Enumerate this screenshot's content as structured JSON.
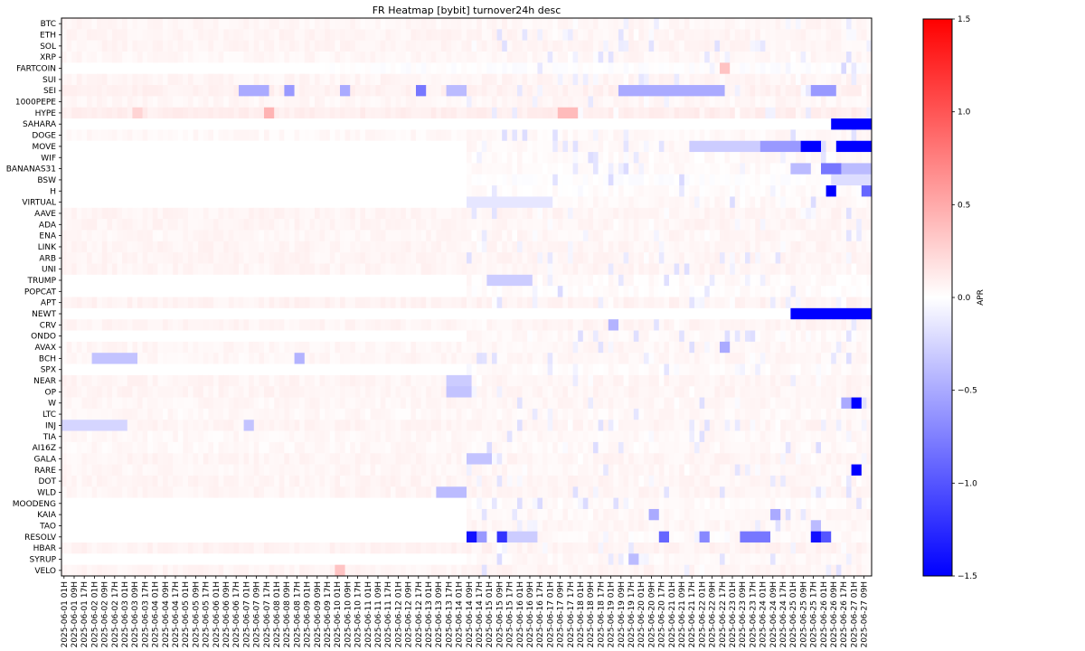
{
  "chart_data": {
    "type": "heatmap",
    "title": "FR Heatmap [bybit] turnover24h desc",
    "colorbar": {
      "label": "APR",
      "vmin": -1.5,
      "vmax": 1.5,
      "ticks": [
        1.5,
        1.0,
        0.5,
        0.0,
        -0.5,
        -1.0,
        -1.5
      ],
      "tick_labels": [
        "1.5",
        "1.0",
        "0.5",
        "0.0",
        "−0.5",
        "−1.0",
        "−1.5"
      ],
      "colormap": "bwr"
    },
    "y_labels": [
      "BTC",
      "ETH",
      "SOL",
      "XRP",
      "FARTCOIN",
      "SUI",
      "SEI",
      "1000PEPE",
      "HYPE",
      "SAHARA",
      "DOGE",
      "MOVE",
      "WIF",
      "BANANAS31",
      "BSW",
      "H",
      "VIRTUAL",
      "AAVE",
      "ADA",
      "ENA",
      "LINK",
      "ARB",
      "UNI",
      "TRUMP",
      "POPCAT",
      "APT",
      "NEWT",
      "CRV",
      "ONDO",
      "AVAX",
      "BCH",
      "SPX",
      "NEAR",
      "OP",
      "W",
      "LTC",
      "INJ",
      "TIA",
      "AI16Z",
      "GALA",
      "RARE",
      "DOT",
      "WLD",
      "MOODENG",
      "KAIA",
      "TAO",
      "RESOLV",
      "HBAR",
      "SYRUP",
      "VELO"
    ],
    "x_labels": [
      "2025-06-01 01H",
      "2025-06-01 09H",
      "2025-06-01 17H",
      "2025-06-02 01H",
      "2025-06-02 09H",
      "2025-06-02 17H",
      "2025-06-03 01H",
      "2025-06-03 09H",
      "2025-06-03 17H",
      "2025-06-04 01H",
      "2025-06-04 09H",
      "2025-06-04 17H",
      "2025-06-05 01H",
      "2025-06-05 09H",
      "2025-06-05 17H",
      "2025-06-06 01H",
      "2025-06-06 09H",
      "2025-06-06 17H",
      "2025-06-07 01H",
      "2025-06-07 09H",
      "2025-06-07 17H",
      "2025-06-08 01H",
      "2025-06-08 09H",
      "2025-06-08 17H",
      "2025-06-09 01H",
      "2025-06-09 09H",
      "2025-06-09 17H",
      "2025-06-10 01H",
      "2025-06-10 09H",
      "2025-06-10 17H",
      "2025-06-11 01H",
      "2025-06-11 09H",
      "2025-06-11 17H",
      "2025-06-12 01H",
      "2025-06-12 09H",
      "2025-06-12 17H",
      "2025-06-13 01H",
      "2025-06-13 09H",
      "2025-06-13 17H",
      "2025-06-14 01H",
      "2025-06-14 09H",
      "2025-06-14 17H",
      "2025-06-15 01H",
      "2025-06-15 09H",
      "2025-06-15 17H",
      "2025-06-16 01H",
      "2025-06-16 09H",
      "2025-06-16 17H",
      "2025-06-17 01H",
      "2025-06-17 09H",
      "2025-06-17 17H",
      "2025-06-18 01H",
      "2025-06-18 09H",
      "2025-06-18 17H",
      "2025-06-19 01H",
      "2025-06-19 09H",
      "2025-06-19 17H",
      "2025-06-20 01H",
      "2025-06-20 09H",
      "2025-06-20 17H",
      "2025-06-21 01H",
      "2025-06-21 09H",
      "2025-06-21 17H",
      "2025-06-22 01H",
      "2025-06-22 09H",
      "2025-06-22 17H",
      "2025-06-23 01H",
      "2025-06-23 09H",
      "2025-06-23 17H",
      "2025-06-24 01H",
      "2025-06-24 09H",
      "2025-06-24 17H",
      "2025-06-25 01H",
      "2025-06-25 09H",
      "2025-06-25 17H",
      "2025-06-26 01H",
      "2025-06-26 09H",
      "2025-06-26 17H",
      "2025-06-27 01H",
      "2025-06-27 09H"
    ],
    "n_columns": 160,
    "baseline_by_row": [
      0.05,
      0.06,
      0.06,
      0.05,
      0.0,
      0.06,
      0.08,
      0.05,
      0.1,
      0.0,
      0.04,
      0.04,
      0.03,
      0.03,
      0.0,
      0.02,
      0.04,
      0.06,
      0.06,
      0.05,
      0.06,
      0.06,
      0.06,
      0.03,
      0.02,
      0.07,
      0.04,
      0.06,
      0.04,
      0.05,
      0.05,
      0.03,
      0.06,
      0.06,
      0.05,
      0.04,
      0.06,
      0.04,
      0.04,
      0.06,
      0.05,
      0.06,
      0.06,
      0.03,
      0.05,
      0.05,
      0.04,
      0.07,
      0.04,
      0.06
    ],
    "listing_start_column": {
      "SAHARA": 152,
      "FARTCOIN": 52,
      "MOVE": 80,
      "WIF": 80,
      "BANANAS31": 80,
      "BSW": 80,
      "H": 80,
      "VIRTUAL": 80,
      "TRUMP": 80,
      "POPCAT": 80,
      "ONDO": 80,
      "SPX": 80,
      "MOODENG": 80,
      "KAIA": 80,
      "TAO": 80,
      "RESOLV": 80,
      "SYRUP": 80,
      "NEWT": 144
    },
    "highlight_cells": [
      {
        "row": "SAHARA",
        "from": 152,
        "to": 159,
        "value": -1.5
      },
      {
        "row": "MOVE",
        "from": 146,
        "to": 149,
        "value": -1.5
      },
      {
        "row": "MOVE",
        "from": 153,
        "to": 154,
        "value": -1.5
      },
      {
        "row": "MOVE",
        "from": 155,
        "to": 159,
        "value": -1.5
      },
      {
        "row": "MOVE",
        "from": 138,
        "to": 145,
        "value": -0.6
      },
      {
        "row": "MOVE",
        "from": 124,
        "to": 137,
        "value": -0.3
      },
      {
        "row": "NEWT",
        "from": 144,
        "to": 159,
        "value": -1.5
      },
      {
        "row": "H",
        "from": 151,
        "to": 152,
        "value": -1.5
      },
      {
        "row": "H",
        "from": 158,
        "to": 159,
        "value": -0.9
      },
      {
        "row": "W",
        "from": 156,
        "to": 157,
        "value": -1.5
      },
      {
        "row": "W",
        "from": 154,
        "to": 155,
        "value": -0.5
      },
      {
        "row": "RARE",
        "from": 156,
        "to": 157,
        "value": -1.5
      },
      {
        "row": "RESOLV",
        "from": 80,
        "to": 81,
        "value": -1.4
      },
      {
        "row": "RESOLV",
        "from": 82,
        "to": 83,
        "value": -0.6
      },
      {
        "row": "RESOLV",
        "from": 86,
        "to": 87,
        "value": -1.2
      },
      {
        "row": "RESOLV",
        "from": 88,
        "to": 93,
        "value": -0.3
      },
      {
        "row": "RESOLV",
        "from": 118,
        "to": 119,
        "value": -0.9
      },
      {
        "row": "RESOLV",
        "from": 126,
        "to": 127,
        "value": -0.7
      },
      {
        "row": "RESOLV",
        "from": 134,
        "to": 139,
        "value": -0.8
      },
      {
        "row": "RESOLV",
        "from": 148,
        "to": 149,
        "value": -1.4
      },
      {
        "row": "RESOLV",
        "from": 150,
        "to": 151,
        "value": -1.0
      },
      {
        "row": "SEI",
        "from": 35,
        "to": 40,
        "value": -0.5
      },
      {
        "row": "SEI",
        "from": 44,
        "to": 45,
        "value": -0.6
      },
      {
        "row": "SEI",
        "from": 55,
        "to": 56,
        "value": -0.5
      },
      {
        "row": "SEI",
        "from": 70,
        "to": 71,
        "value": -0.8
      },
      {
        "row": "SEI",
        "from": 76,
        "to": 79,
        "value": -0.4
      },
      {
        "row": "SEI",
        "from": 110,
        "to": 130,
        "value": -0.5
      },
      {
        "row": "SEI",
        "from": 148,
        "to": 152,
        "value": -0.6
      },
      {
        "row": "BANANAS31",
        "from": 144,
        "to": 147,
        "value": -0.4
      },
      {
        "row": "BANANAS31",
        "from": 150,
        "to": 153,
        "value": -0.8
      },
      {
        "row": "BANANAS31",
        "from": 154,
        "to": 159,
        "value": -0.4
      },
      {
        "row": "BSW",
        "from": 152,
        "to": 159,
        "value": -0.2
      },
      {
        "row": "HYPE",
        "from": 40,
        "to": 41,
        "value": 0.45
      },
      {
        "row": "HYPE",
        "from": 98,
        "to": 101,
        "value": 0.4
      },
      {
        "row": "HYPE",
        "from": 14,
        "to": 15,
        "value": 0.25
      },
      {
        "row": "FARTCOIN",
        "from": 130,
        "to": 131,
        "value": 0.35
      },
      {
        "row": "VELO",
        "from": 54,
        "to": 55,
        "value": 0.35
      },
      {
        "row": "INJ",
        "from": 0,
        "to": 12,
        "value": -0.25
      },
      {
        "row": "INJ",
        "from": 36,
        "to": 37,
        "value": -0.35
      },
      {
        "row": "BCH",
        "from": 6,
        "to": 14,
        "value": -0.35
      },
      {
        "row": "BCH",
        "from": 46,
        "to": 47,
        "value": -0.45
      },
      {
        "row": "WLD",
        "from": 74,
        "to": 79,
        "value": -0.4
      },
      {
        "row": "KAIA",
        "from": 116,
        "to": 117,
        "value": -0.5
      },
      {
        "row": "KAIA",
        "from": 140,
        "to": 141,
        "value": -0.5
      },
      {
        "row": "TAO",
        "from": 148,
        "to": 149,
        "value": -0.4
      },
      {
        "row": "SYRUP",
        "from": 112,
        "to": 113,
        "value": -0.4
      },
      {
        "row": "TRUMP",
        "from": 84,
        "to": 92,
        "value": -0.3
      },
      {
        "row": "CRV",
        "from": 108,
        "to": 109,
        "value": -0.45
      },
      {
        "row": "AVAX",
        "from": 130,
        "to": 131,
        "value": -0.5
      },
      {
        "row": "OP",
        "from": 76,
        "to": 80,
        "value": -0.35
      },
      {
        "row": "GALA",
        "from": 80,
        "to": 84,
        "value": -0.35
      },
      {
        "row": "VIRTUAL",
        "from": 80,
        "to": 96,
        "value": -0.15
      },
      {
        "row": "NEAR",
        "from": 76,
        "to": 80,
        "value": -0.3
      }
    ]
  }
}
